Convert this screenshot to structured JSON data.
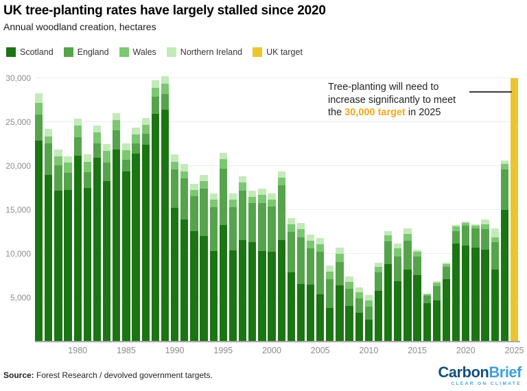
{
  "header": {
    "title": "UK tree-planting rates have largely stalled since 2020",
    "subtitle": "Annual woodland creation, hectares"
  },
  "legend": [
    {
      "label": "Scotland",
      "color": "#1a7512"
    },
    {
      "label": "England",
      "color": "#55a44b"
    },
    {
      "label": "Wales",
      "color": "#7cc771"
    },
    {
      "label": "Northern Ireland",
      "color": "#c3eab9"
    },
    {
      "label": "UK target",
      "color": "#edc42e"
    }
  ],
  "annotation": {
    "line1": "Tree-planting will need to",
    "line2": "increase significantly to meet",
    "line3_pre": "the ",
    "line3_highlight": "30,000 target",
    "line3_post": " in 2025",
    "highlight_color": "#f5a81c"
  },
  "chart_data": {
    "type": "bar",
    "stacked": true,
    "title": "UK tree-planting rates have largely stalled since 2020",
    "ylabel": "Annual woodland creation, hectares",
    "ylim": [
      0,
      30000
    ],
    "yticks": [
      5000,
      10000,
      15000,
      20000,
      25000,
      30000
    ],
    "xticks": [
      1980,
      1985,
      1990,
      1995,
      2000,
      2005,
      2010,
      2015,
      2020,
      2025
    ],
    "grid": true,
    "legend_position": "top-left",
    "years": [
      1976,
      1977,
      1978,
      1979,
      1980,
      1981,
      1982,
      1983,
      1984,
      1985,
      1986,
      1987,
      1988,
      1989,
      1990,
      1991,
      1992,
      1993,
      1994,
      1995,
      1996,
      1997,
      1998,
      1999,
      2000,
      2001,
      2002,
      2003,
      2004,
      2005,
      2006,
      2007,
      2008,
      2009,
      2010,
      2011,
      2012,
      2013,
      2014,
      2015,
      2016,
      2017,
      2018,
      2019,
      2020,
      2021,
      2022,
      2023,
      2024
    ],
    "series": [
      {
        "name": "Scotland",
        "color": "#1a7512",
        "values": [
          22900,
          19000,
          17200,
          17300,
          21200,
          17500,
          20900,
          18300,
          21900,
          19400,
          21400,
          22400,
          25900,
          26400,
          15200,
          13900,
          12600,
          12000,
          10300,
          13300,
          10400,
          11600,
          11300,
          10300,
          10200,
          11600,
          7900,
          6600,
          6500,
          5400,
          3800,
          6400,
          4100,
          3300,
          2500,
          5800,
          8800,
          6900,
          8200,
          7600,
          4400,
          4700,
          7100,
          11200,
          10900,
          10700,
          10500,
          8200,
          15000
        ]
      },
      {
        "name": "England",
        "color": "#55a44b",
        "values": [
          3000,
          3600,
          2900,
          1900,
          2100,
          1800,
          1700,
          2100,
          2200,
          1300,
          1200,
          1300,
          2000,
          1800,
          4400,
          4700,
          4000,
          5400,
          5000,
          6400,
          4900,
          5600,
          4500,
          5500,
          5200,
          6200,
          4600,
          5300,
          4100,
          4800,
          3300,
          2700,
          1900,
          1600,
          1500,
          2100,
          2600,
          2800,
          3300,
          2100,
          800,
          1600,
          1400,
          1400,
          2300,
          2200,
          2300,
          3100,
          4600
        ]
      },
      {
        "name": "Wales",
        "color": "#7cc771",
        "values": [
          1300,
          800,
          1000,
          1200,
          1300,
          1200,
          1200,
          1300,
          1100,
          1100,
          1000,
          1000,
          1000,
          1200,
          900,
          800,
          700,
          900,
          900,
          1100,
          900,
          900,
          700,
          900,
          800,
          900,
          900,
          900,
          900,
          900,
          900,
          900,
          800,
          700,
          700,
          600,
          700,
          900,
          800,
          500,
          200,
          400,
          300,
          500,
          300,
          300,
          600,
          600,
          600
        ]
      },
      {
        "name": "Northern Ireland",
        "color": "#c3eab9",
        "values": [
          1100,
          800,
          800,
          700,
          800,
          800,
          800,
          800,
          800,
          800,
          800,
          800,
          900,
          800,
          800,
          800,
          700,
          700,
          700,
          700,
          700,
          700,
          700,
          700,
          700,
          700,
          700,
          700,
          700,
          700,
          700,
          700,
          600,
          600,
          600,
          500,
          500,
          600,
          600,
          300,
          100,
          200,
          200,
          200,
          200,
          200,
          500,
          1000,
          400
        ]
      }
    ],
    "target": {
      "name": "UK target",
      "year": 2025,
      "value": 30000,
      "color": "#edc42e"
    }
  },
  "footer": {
    "source_label": "Source:",
    "source_text": " Forest Research / devolved government targets.",
    "logo": {
      "part1": "Carbon",
      "part2": "Brief",
      "tagline": "CLEAR ON CLIMATE",
      "part1_color": "#14517e",
      "part2_color": "#3fa0da"
    }
  }
}
